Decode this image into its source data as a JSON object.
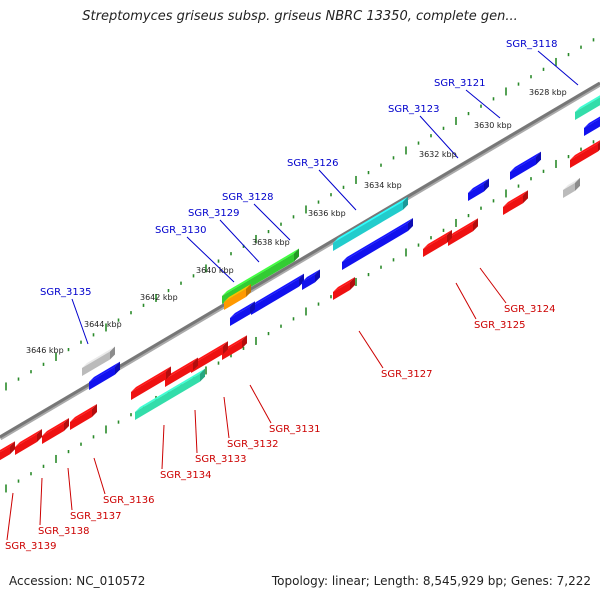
{
  "title": "Streptomyces griseus subsp. griseus NBRC 13350, complete gen...",
  "footer": {
    "accession": "Accession: NC_010572",
    "summary": "Topology: linear; Length: 8,545,929 bp; Genes: 7,222"
  },
  "colors": {
    "plus_label": "#0000cc",
    "minus_label": "#cc0000",
    "axis": "#888888",
    "tick": "#2a8a2a",
    "red": "#ee1111",
    "blue": "#1111ee",
    "cyan": "#22cccc",
    "green": "#33cc33",
    "mint": "#33ddaa",
    "gray": "#bbbbbb",
    "orange": "#ff9900"
  },
  "kbp_labels": [
    "3628 kbp",
    "3630 kbp",
    "3632 kbp",
    "3634 kbp",
    "3636 kbp",
    "3638 kbp",
    "3640 kbp",
    "3642 kbp",
    "3644 kbp",
    "3646 kbp"
  ],
  "plus_genes": [
    "SGR_3118",
    "SGR_3121",
    "SGR_3123",
    "SGR_3126",
    "SGR_3128",
    "SGR_3129",
    "SGR_3130",
    "SGR_3135"
  ],
  "minus_genes": [
    "SGR_3124",
    "SGR_3125",
    "SGR_3127",
    "SGR_3131",
    "SGR_3132",
    "SGR_3133",
    "SGR_3134",
    "SGR_3136",
    "SGR_3137",
    "SGR_3138",
    "SGR_3139"
  ]
}
